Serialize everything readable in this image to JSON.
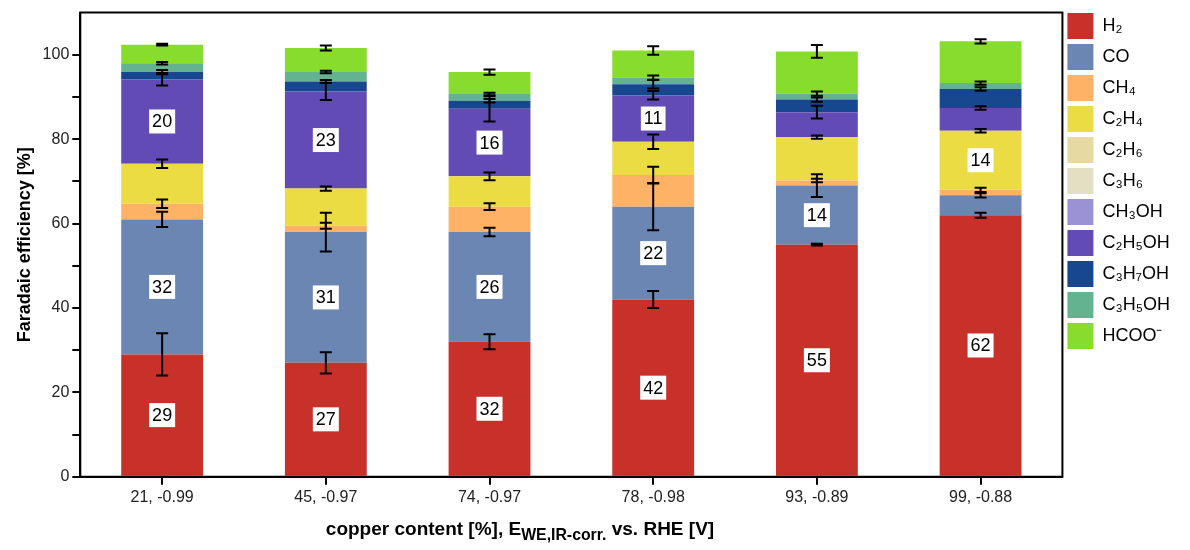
{
  "chart_data": {
    "type": "bar",
    "stacked": true,
    "ylabel": "Faradaic efficiency [%]",
    "xlabel": "copper content [%], E$_{WE,IR-corr.}$ vs. RHE [V]",
    "categories": [
      "21, -0.99",
      "45, -0.97",
      "74, -0.97",
      "78, -0.98",
      "93, -0.89",
      "99, -0.88"
    ],
    "ylim": [
      0,
      110
    ],
    "yticks": [
      0,
      {
        "value": 10,
        "label": null
      },
      20,
      {
        "value": 30,
        "label": null
      },
      40,
      {
        "value": 50,
        "label": null
      },
      60,
      {
        "value": 70,
        "label": null
      },
      80,
      {
        "value": 90,
        "label": null
      },
      100
    ],
    "grid": false,
    "legend": "right",
    "series": [
      {
        "name": "H₂",
        "color": "#c8302a",
        "values": [
          29,
          27,
          32,
          42,
          55,
          62
        ],
        "errors": [
          5,
          2.5,
          1.8,
          2,
          0.2,
          0.6
        ],
        "value_labels": [
          "29",
          "27",
          "32",
          "42",
          "55",
          "62"
        ]
      },
      {
        "name": "CO",
        "color": "#6b86b3",
        "values": [
          32,
          31,
          26,
          22,
          14,
          4.7
        ],
        "errors": [
          1.8,
          4.6,
          1,
          5.6,
          2.7,
          0.5
        ],
        "value_labels": [
          "32",
          "31",
          "26",
          "22",
          "14",
          null
        ]
      },
      {
        "name": "CH₄",
        "color": "#fdb266",
        "values": [
          3.7,
          1.5,
          6.0,
          7.5,
          1.2,
          1.3
        ],
        "errors": [
          1,
          0.7,
          0.8,
          2,
          0.4,
          0.5
        ]
      },
      {
        "name": "C₂H₄",
        "color": "#ecdc44",
        "values": [
          9.5,
          8.8,
          7.2,
          7.9,
          10.3,
          14
        ],
        "errors": [
          1,
          0.5,
          0.9,
          1.7,
          0.4,
          0.4
        ],
        "value_labels": [
          null,
          null,
          null,
          null,
          null,
          "14"
        ]
      },
      {
        "name": "C₂H₆",
        "color": "#e6d9a2",
        "values": [
          0,
          0,
          0,
          0,
          0,
          0
        ]
      },
      {
        "name": "C₃H₆",
        "color": "#e3dfc4",
        "values": [
          0,
          0,
          0,
          0,
          0,
          0
        ]
      },
      {
        "name": "CH₃OH",
        "color": "#9a92d4",
        "values": [
          0,
          0,
          0,
          0,
          0,
          0
        ]
      },
      {
        "name": "C₂H₅OH",
        "color": "#634bb5",
        "values": [
          20,
          23,
          16,
          11,
          5.9,
          5.4
        ],
        "errors": [
          1.5,
          2,
          3,
          1,
          1.5,
          0.4
        ],
        "value_labels": [
          "20",
          "23",
          "16",
          "11",
          null,
          null
        ]
      },
      {
        "name": "C₃H₇OH",
        "color": "#17478e",
        "values": [
          1.7,
          2.4,
          1.9,
          2.6,
          3.0,
          4.5
        ],
        "errors": [
          0.5,
          0.3,
          0.4,
          1,
          0.5,
          0.4
        ]
      },
      {
        "name": "C₃H₅OH",
        "color": "#63b290",
        "values": [
          2.1,
          2.2,
          1.6,
          1.6,
          1.4,
          1.4
        ],
        "errors": [
          0.3,
          0.3,
          0.3,
          0.5,
          0.5,
          0.4
        ]
      },
      {
        "name": "HCOO⁻",
        "color": "#87dc2e",
        "values": [
          4.4,
          5.7,
          5.2,
          6.4,
          10.0,
          9.9
        ],
        "errors": [
          0.2,
          0.6,
          0.6,
          1,
          1.5,
          0.5
        ]
      }
    ]
  }
}
